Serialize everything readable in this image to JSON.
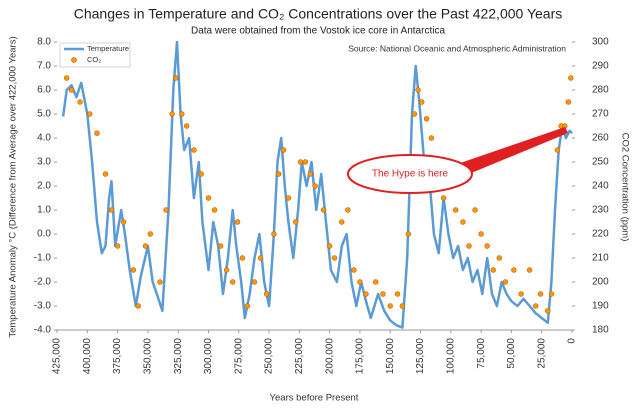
{
  "chart_data": {
    "type": "line",
    "title": "Changes in Temperature and CO₂ Concentrations over the Past 422,000 Years",
    "subtitle": "Data were obtained from the Vostok ice core in Antarctica",
    "source": "Source: National Oceanic and Atmospheric Administration",
    "annotation": "The Hype is here",
    "x_label": "Years before Present",
    "y_label": "Temperature Anomaly °C (Difference from Average over 422,000 Years)",
    "y2_label": "CO2 Concentration (ppm)",
    "xlim": [
      425000,
      0
    ],
    "xticks": [
      {
        "value": 425000,
        "label": "425,000"
      },
      {
        "value": 400000,
        "label": "400,000"
      },
      {
        "value": 375000,
        "label": "375,000"
      },
      {
        "value": 350000,
        "label": "350,000"
      },
      {
        "value": 325000,
        "label": "325,000"
      },
      {
        "value": 300000,
        "label": "300,000"
      },
      {
        "value": 275000,
        "label": "275,000"
      },
      {
        "value": 250000,
        "label": "250,000"
      },
      {
        "value": 225000,
        "label": "225,000"
      },
      {
        "value": 200000,
        "label": "200,000"
      },
      {
        "value": 175000,
        "label": "175,000"
      },
      {
        "value": 150000,
        "label": "150,000"
      },
      {
        "value": 125000,
        "label": "125,000"
      },
      {
        "value": 100000,
        "label": "100,000"
      },
      {
        "value": 75000,
        "label": "75,000"
      },
      {
        "value": 50000,
        "label": "50,000"
      },
      {
        "value": 25000,
        "label": "25,000"
      },
      0
    ],
    "ylim": [
      -4,
      8
    ],
    "yticks": [
      {
        "value": 8,
        "label": "8.0"
      },
      {
        "value": 7,
        "label": "7.0"
      },
      {
        "value": 6,
        "label": "6.0"
      },
      {
        "value": 5,
        "label": "5.0"
      },
      {
        "value": 4,
        "label": "4.0"
      },
      {
        "value": 3,
        "label": "3.0"
      },
      {
        "value": 2,
        "label": "2.0"
      },
      {
        "value": 1,
        "label": "1.0"
      },
      {
        "value": 0,
        "label": "0.0"
      },
      {
        "value": -1,
        "label": "-1.0"
      },
      {
        "value": -2,
        "label": "-2.0"
      },
      {
        "value": -3,
        "label": "-3.0"
      },
      {
        "value": -4,
        "label": "-4.0"
      }
    ],
    "y2lim": [
      180,
      300
    ],
    "y2ticks": [
      300,
      290,
      280,
      270,
      260,
      250,
      240,
      230,
      220,
      210,
      200,
      190,
      180
    ],
    "series": [
      {
        "name": "Temperature",
        "type": "line",
        "color": "#5b9bd5",
        "x": [
          420000,
          417000,
          413000,
          409000,
          405000,
          400000,
          396000,
          392000,
          388000,
          385000,
          382000,
          380000,
          377000,
          372000,
          369000,
          365000,
          360000,
          356000,
          350000,
          346000,
          342000,
          338000,
          333000,
          329000,
          326000,
          323000,
          320000,
          316000,
          312000,
          308000,
          305000,
          300000,
          296000,
          292000,
          288000,
          284000,
          280000,
          277000,
          273000,
          270000,
          266000,
          262000,
          258000,
          254000,
          250000,
          246000,
          243000,
          240000,
          237000,
          234000,
          230000,
          226000,
          223000,
          219000,
          215000,
          211000,
          207000,
          203000,
          199000,
          194000,
          190000,
          186000,
          182000,
          178000,
          174000,
          170000,
          166000,
          160000,
          155000,
          150000,
          145000,
          140000,
          136000,
          132000,
          129000,
          126000,
          122000,
          118000,
          114000,
          110000,
          106000,
          102000,
          98000,
          94000,
          90000,
          86000,
          82000,
          78000,
          74000,
          70000,
          66000,
          62000,
          58000,
          54000,
          50000,
          45000,
          40000,
          35000,
          30000,
          25000,
          20000,
          17000,
          14000,
          11000,
          8000,
          5000,
          2000,
          0
        ],
        "values": [
          4.9,
          6.0,
          6.2,
          5.7,
          6.3,
          5.0,
          3.0,
          0.5,
          -0.8,
          -0.5,
          1.5,
          2.2,
          -0.5,
          1.0,
          0.0,
          -1.5,
          -3.0,
          -1.8,
          -0.5,
          -2.0,
          -2.6,
          -3.2,
          1.0,
          6.0,
          8.0,
          5.0,
          3.5,
          4.0,
          1.5,
          3.0,
          0.5,
          -1.5,
          0.5,
          -0.5,
          -2.5,
          -1.0,
          1.0,
          -0.5,
          -2.0,
          -3.5,
          -2.5,
          -1.0,
          0.0,
          -2.0,
          -3.0,
          0.0,
          3.0,
          4.0,
          2.0,
          0.5,
          -1.0,
          1.0,
          3.0,
          2.0,
          3.0,
          1.0,
          2.5,
          0.5,
          -1.5,
          -2.0,
          -0.5,
          0.0,
          -2.0,
          -3.0,
          -2.0,
          -2.8,
          -3.5,
          -2.5,
          -3.2,
          -3.6,
          -3.8,
          -3.9,
          -1.0,
          5.0,
          7.0,
          5.5,
          3.0,
          2.5,
          0.0,
          -0.8,
          1.5,
          0.0,
          -1.0,
          -0.5,
          -1.5,
          -1.0,
          -2.0,
          -1.5,
          -2.5,
          -1.0,
          -2.5,
          -3.0,
          -2.0,
          -2.5,
          -2.8,
          -3.0,
          -2.7,
          -3.0,
          -3.3,
          -3.5,
          -3.7,
          -2.0,
          1.0,
          3.5,
          4.5,
          4.0,
          4.3,
          4.2
        ]
      },
      {
        "name": "CO₂",
        "type": "scatter",
        "axis": "y2",
        "color": "#ff9900",
        "x": [
          417000,
          413000,
          406000,
          398000,
          392000,
          385000,
          380000,
          375000,
          370000,
          362000,
          358000,
          352000,
          348000,
          340000,
          335000,
          330000,
          327000,
          322000,
          318000,
          312000,
          306000,
          300000,
          295000,
          290000,
          285000,
          280000,
          276000,
          272000,
          268000,
          262000,
          257000,
          252000,
          246000,
          242000,
          238000,
          234000,
          228000,
          224000,
          220000,
          216000,
          212000,
          205000,
          200000,
          196000,
          190000,
          185000,
          180000,
          175000,
          170000,
          162000,
          156000,
          150000,
          144000,
          140000,
          135000,
          130000,
          127000,
          124000,
          120000,
          116000,
          110000,
          106000,
          102000,
          96000,
          90000,
          85000,
          80000,
          75000,
          70000,
          65000,
          60000,
          55000,
          48000,
          42000,
          35000,
          30000,
          26000,
          20000,
          17000,
          12000,
          9000,
          6000,
          3000,
          1000
        ],
        "values": [
          285,
          280,
          275,
          270,
          262,
          245,
          230,
          215,
          225,
          205,
          190,
          215,
          220,
          200,
          230,
          270,
          285,
          270,
          265,
          255,
          245,
          235,
          230,
          215,
          205,
          200,
          225,
          210,
          190,
          200,
          210,
          195,
          220,
          245,
          255,
          235,
          225,
          250,
          250,
          245,
          240,
          230,
          215,
          210,
          225,
          230,
          205,
          200,
          195,
          200,
          195,
          190,
          195,
          190,
          220,
          270,
          280,
          275,
          268,
          260,
          240,
          235,
          245,
          230,
          225,
          215,
          230,
          220,
          215,
          205,
          210,
          200,
          205,
          195,
          205,
          190,
          195,
          188,
          195,
          255,
          265,
          265,
          275,
          285
        ]
      }
    ]
  }
}
